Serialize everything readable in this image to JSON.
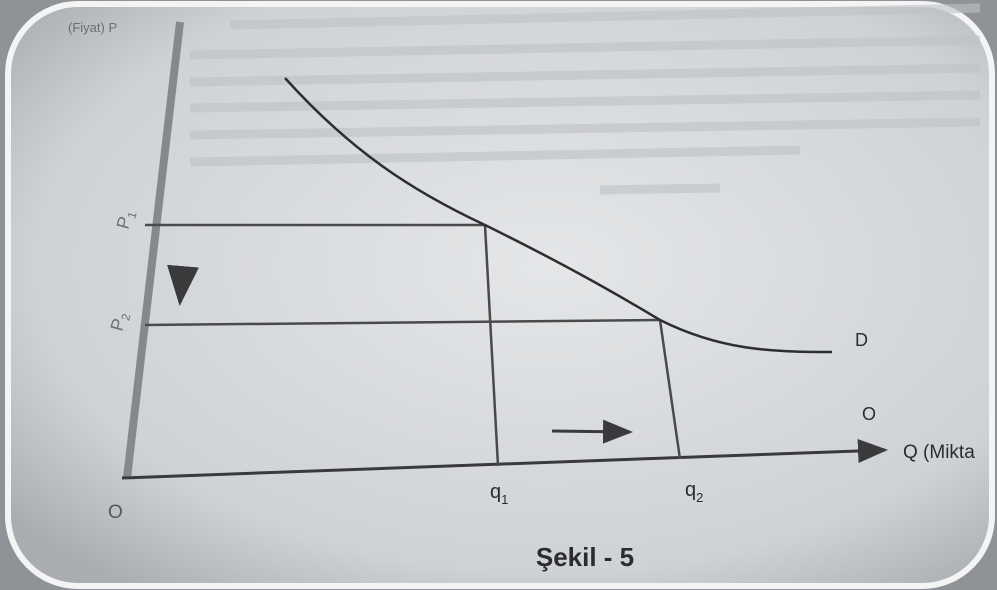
{
  "axis_labels": {
    "y": "(Fiyat) P",
    "x": "Q (Mikta",
    "origin": "O"
  },
  "price_labels": [
    {
      "base": "P",
      "sub": "1"
    },
    {
      "base": "P",
      "sub": "2"
    }
  ],
  "quantity_labels": [
    {
      "base": "q",
      "sub": "1"
    },
    {
      "base": "q",
      "sub": "2"
    }
  ],
  "curve_labels": {
    "demand": "D",
    "supply": "O"
  },
  "caption": "Şekil - 5"
}
